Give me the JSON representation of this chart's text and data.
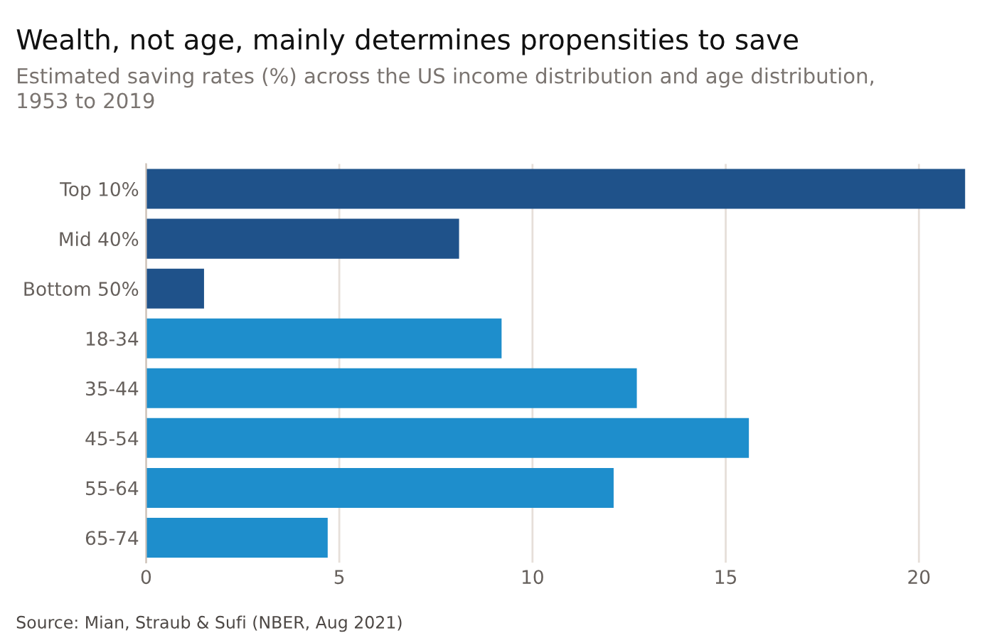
{
  "chart_data": {
    "type": "bar",
    "orientation": "horizontal",
    "title": "Wealth, not age, mainly determines propensities to save",
    "subtitle": "Estimated saving rates (%) across the US income distribution and age distribution,\n1953 to 2019",
    "categories": [
      "Top 10%",
      "Mid 40%",
      "Bottom 50%",
      "18-34",
      "35-44",
      "45-54",
      "55-64",
      "65-74"
    ],
    "values": [
      21.2,
      8.1,
      1.5,
      9.2,
      12.7,
      15.6,
      12.1,
      4.7
    ],
    "colors": [
      "#1f528a",
      "#1f528a",
      "#1f528a",
      "#1e8ecc",
      "#1e8ecc",
      "#1e8ecc",
      "#1e8ecc",
      "#1e8ecc"
    ],
    "xlim": [
      0,
      21.2
    ],
    "xticks": [
      0,
      5,
      10,
      15,
      20
    ],
    "grid": "x",
    "annotations": [
      "Source: Mian, Straub & Sufi (NBER, Aug 2021)"
    ]
  }
}
